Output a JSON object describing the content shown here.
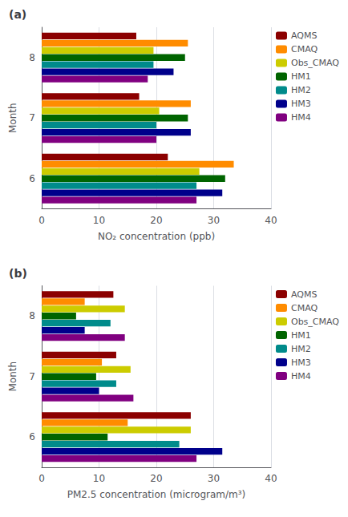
{
  "chart_data": [
    {
      "type": "bar",
      "orientation": "horizontal",
      "title": "(a)",
      "xlabel": "NO₂ concentration (ppb)",
      "ylabel": "Month",
      "categories": [
        "6",
        "7",
        "8"
      ],
      "series": [
        {
          "name": "AQMS",
          "color": "#8B0000",
          "values": [
            22,
            17,
            16.5
          ]
        },
        {
          "name": "CMAQ",
          "color": "#FF8C00",
          "values": [
            33.5,
            26,
            25.5
          ]
        },
        {
          "name": "Obs_CMAQ",
          "color": "#CCCC00",
          "values": [
            27.5,
            20.5,
            19.5
          ]
        },
        {
          "name": "HM1",
          "color": "#006400",
          "values": [
            32,
            25.5,
            25
          ]
        },
        {
          "name": "HM2",
          "color": "#008B8B",
          "values": [
            27,
            20,
            19.5
          ]
        },
        {
          "name": "HM3",
          "color": "#00008B",
          "values": [
            31.5,
            26,
            23
          ]
        },
        {
          "name": "HM4",
          "color": "#800080",
          "values": [
            27,
            20,
            18.5
          ]
        }
      ],
      "xlim": [
        0,
        40
      ],
      "xticks": [
        0,
        10,
        20,
        30,
        40
      ],
      "grid": true,
      "legend": "upper right"
    },
    {
      "type": "bar",
      "orientation": "horizontal",
      "title": "(b)",
      "xlabel": "PM2.5 concentration (microgram/m³)",
      "ylabel": "Month",
      "categories": [
        "6",
        "7",
        "8"
      ],
      "series": [
        {
          "name": "AQMS",
          "color": "#8B0000",
          "values": [
            26,
            13,
            12.5
          ]
        },
        {
          "name": "CMAQ",
          "color": "#FF8C00",
          "values": [
            15,
            10.5,
            7.5
          ]
        },
        {
          "name": "Obs_CMAQ",
          "color": "#CCCC00",
          "values": [
            26,
            15.5,
            14.5
          ]
        },
        {
          "name": "HM1",
          "color": "#006400",
          "values": [
            11.5,
            9.5,
            6
          ]
        },
        {
          "name": "HM2",
          "color": "#008B8B",
          "values": [
            24,
            13,
            12
          ]
        },
        {
          "name": "HM3",
          "color": "#00008B",
          "values": [
            31.5,
            10,
            7.5
          ]
        },
        {
          "name": "HM4",
          "color": "#800080",
          "values": [
            27,
            16,
            14.5
          ]
        }
      ],
      "xlim": [
        0,
        40
      ],
      "xticks": [
        0,
        10,
        20,
        30,
        40
      ],
      "grid": true,
      "legend": "upper right"
    }
  ]
}
